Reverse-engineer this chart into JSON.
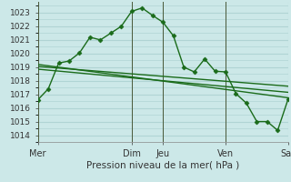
{
  "bg_color": "#cce8e8",
  "grid_color": "#b0d4d4",
  "line_color": "#1a6b1a",
  "xlabel": "Pression niveau de la mer( hPa )",
  "ylim": [
    1013.5,
    1023.8
  ],
  "yticks": [
    1014,
    1015,
    1016,
    1017,
    1018,
    1019,
    1020,
    1021,
    1022,
    1023
  ],
  "x_day_labels": [
    "Mer",
    "Dim",
    "Jeu",
    "Ven",
    "Sar"
  ],
  "x_day_positions": [
    0,
    9,
    12,
    18,
    24
  ],
  "main_x": [
    0,
    1,
    2,
    3,
    4,
    5,
    6,
    7,
    8,
    9,
    10,
    11,
    12,
    13,
    14,
    15,
    16,
    17,
    18,
    19,
    20,
    21,
    22,
    23,
    24
  ],
  "main_y": [
    1016.6,
    1017.4,
    1019.3,
    1019.45,
    1020.05,
    1021.2,
    1021.0,
    1021.5,
    1022.0,
    1023.1,
    1023.35,
    1022.8,
    1022.3,
    1021.3,
    1019.0,
    1018.65,
    1019.6,
    1018.7,
    1018.65,
    1017.05,
    1016.35,
    1015.0,
    1015.0,
    1014.35,
    1016.65
  ],
  "trend1_x": [
    0,
    24
  ],
  "trend1_y": [
    1019.05,
    1017.6
  ],
  "trend2_x": [
    0,
    24
  ],
  "trend2_y": [
    1018.85,
    1017.15
  ],
  "trend3_x": [
    0,
    24
  ],
  "trend3_y": [
    1019.2,
    1016.75
  ],
  "vline_positions": [
    0,
    9,
    12,
    18,
    24
  ],
  "xlim": [
    0,
    24
  ],
  "xlabel_fontsize": 7.5,
  "ytick_fontsize": 6.5,
  "xtick_fontsize": 7.0
}
